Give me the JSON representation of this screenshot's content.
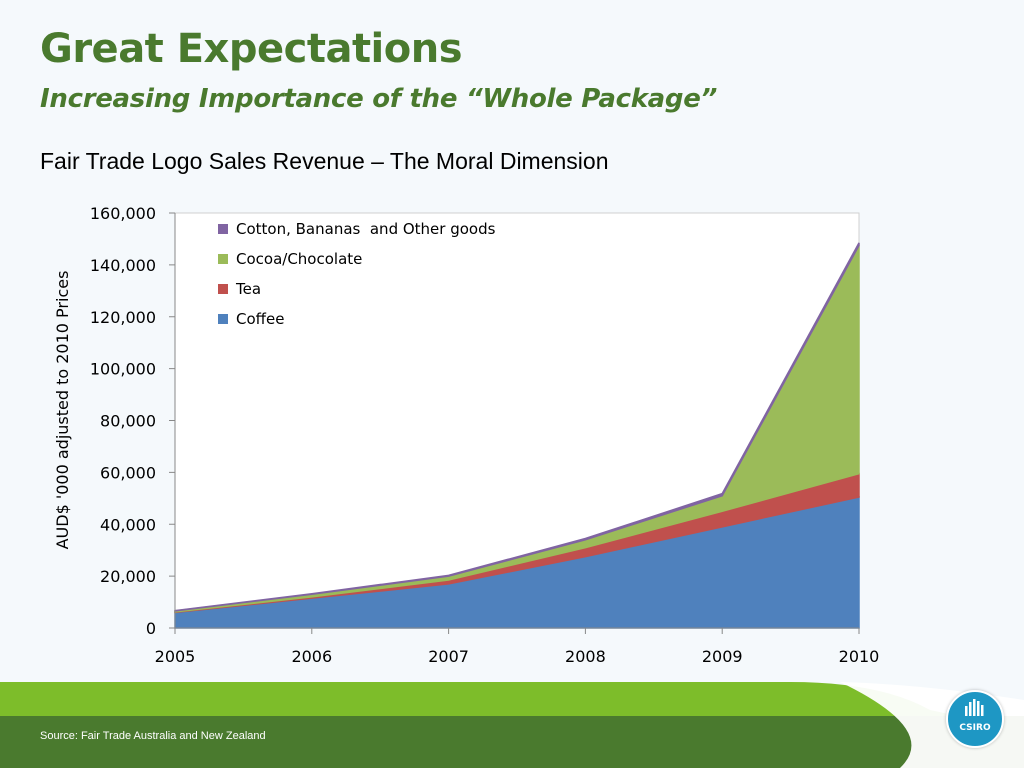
{
  "slide": {
    "title": "Great Expectations",
    "subtitle": "Increasing Importance of the “Whole Package”",
    "chart_heading": "Fair Trade Logo Sales Revenue – The Moral Dimension",
    "source": "Source: Fair Trade Australia and New Zealand",
    "logo_text": "CSIRO",
    "logo_icon": "csiro-logo-icon"
  },
  "colors": {
    "title": "#4a7a2e",
    "footer_green": "#4a7a2e",
    "footer_light_green": "#7dbd2a",
    "logo_blue": "#1e97c4"
  },
  "chart_data": {
    "type": "area",
    "stacked": true,
    "ylabel": "AUD$ '000 adjusted  to 2010 Prices",
    "xlabel": "",
    "categories": [
      "2005",
      "2006",
      "2007",
      "2008",
      "2009",
      "2010"
    ],
    "ylim": [
      0,
      160000
    ],
    "yticks": [
      0,
      20000,
      40000,
      60000,
      80000,
      100000,
      120000,
      140000,
      160000
    ],
    "ytick_labels": [
      "0",
      "20,000",
      "40,000",
      "60,000",
      "80,000",
      "100,000",
      "120,000",
      "140,000",
      "160,000"
    ],
    "grid": false,
    "legend_position": "top-left",
    "series": [
      {
        "name": "Coffee",
        "color": "#4f81bd",
        "values": [
          6000,
          11500,
          17000,
          27500,
          39000,
          50500
        ]
      },
      {
        "name": "Tea",
        "color": "#c0504d",
        "values": [
          200,
          500,
          1500,
          3500,
          6000,
          9000
        ]
      },
      {
        "name": "Cocoa/Chocolate",
        "color": "#9bbb59",
        "values": [
          400,
          1000,
          1500,
          3000,
          6000,
          88000
        ]
      },
      {
        "name": "Cotton, Bananas  and Other goods",
        "color": "#8064a2",
        "values": [
          100,
          200,
          300,
          500,
          800,
          1000
        ]
      }
    ]
  }
}
